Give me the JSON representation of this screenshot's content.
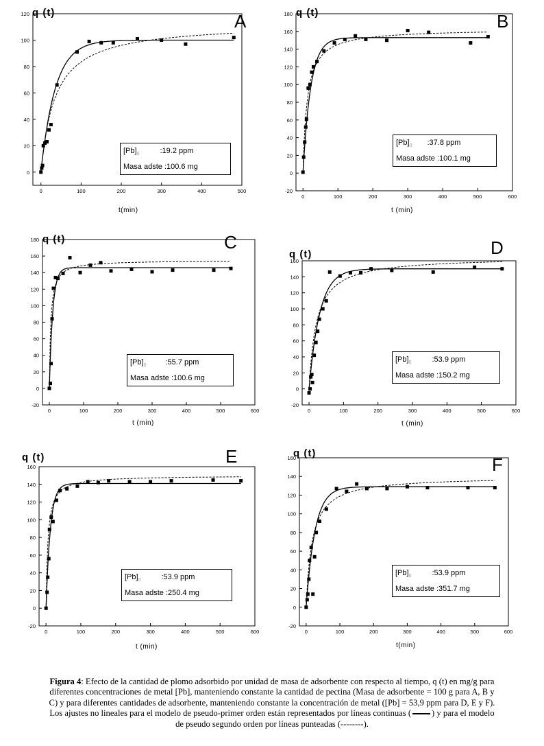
{
  "chart_data": [
    {
      "id": "A",
      "type": "scatter",
      "panel_letter": "A",
      "ylabel": "q (t)",
      "xlabel": "t(min)",
      "xlim": [
        -20,
        500
      ],
      "ylim": [
        -10,
        120
      ],
      "xticks": [
        0,
        100,
        200,
        300,
        400,
        500
      ],
      "yticks": [
        0,
        20,
        40,
        60,
        80,
        100,
        120
      ],
      "info": {
        "pb_label": "[Pb]",
        "pb_sub": "0",
        "pb_value": ":19.2 ppm",
        "masa_label": "Masa adste",
        "masa_value": ":100.6 mg"
      },
      "points": [
        [
          0,
          0
        ],
        [
          2,
          3
        ],
        [
          4,
          5
        ],
        [
          6,
          20
        ],
        [
          10,
          22
        ],
        [
          15,
          23
        ],
        [
          20,
          32
        ],
        [
          25,
          36
        ],
        [
          40,
          66
        ],
        [
          90,
          91
        ],
        [
          120,
          99
        ],
        [
          150,
          98
        ],
        [
          180,
          98
        ],
        [
          240,
          101
        ],
        [
          300,
          100
        ],
        [
          360,
          97
        ],
        [
          480,
          102
        ]
      ],
      "pfo": {
        "qe": 100,
        "k1": 0.028
      },
      "pso": {
        "qe": 113,
        "k2": 0.00025
      }
    },
    {
      "id": "B",
      "type": "scatter",
      "panel_letter": "B",
      "ylabel": "q (t)",
      "xlabel": "t (min)",
      "xlim": [
        -20,
        600
      ],
      "ylim": [
        -20,
        180
      ],
      "xticks": [
        0,
        100,
        200,
        300,
        400,
        500,
        600
      ],
      "yticks": [
        -20,
        0,
        20,
        40,
        60,
        80,
        100,
        120,
        140,
        160,
        180
      ],
      "info": {
        "pb_label": "[Pb]",
        "pb_sub": "0",
        "pb_value": ":37.8 ppm",
        "masa_label": "Masa adste",
        "masa_value": ":100.1 mg"
      },
      "points": [
        [
          0,
          1
        ],
        [
          2,
          18
        ],
        [
          5,
          35
        ],
        [
          8,
          52
        ],
        [
          10,
          61
        ],
        [
          15,
          96
        ],
        [
          20,
          100
        ],
        [
          25,
          114
        ],
        [
          30,
          120
        ],
        [
          40,
          126
        ],
        [
          60,
          138
        ],
        [
          90,
          147
        ],
        [
          120,
          151
        ],
        [
          150,
          155
        ],
        [
          180,
          151
        ],
        [
          240,
          150
        ],
        [
          300,
          161
        ],
        [
          360,
          159
        ],
        [
          480,
          147
        ],
        [
          530,
          154
        ]
      ],
      "pfo": {
        "qe": 153,
        "k1": 0.045
      },
      "pso": {
        "qe": 163,
        "k2": 0.0005
      }
    },
    {
      "id": "C",
      "type": "scatter",
      "panel_letter": "C",
      "ylabel": "q (t)",
      "xlabel": "t (min)",
      "xlim": [
        -20,
        600
      ],
      "ylim": [
        -20,
        180
      ],
      "xticks": [
        0,
        100,
        200,
        300,
        400,
        500,
        600
      ],
      "yticks": [
        -20,
        0,
        20,
        40,
        60,
        80,
        100,
        120,
        140,
        160,
        180
      ],
      "info": {
        "pb_label": "[Pb]",
        "pb_sub": "0",
        "pb_value": ":55.7 ppm",
        "masa_label": "Masa adste",
        "masa_value": ":100.6 mg"
      },
      "points": [
        [
          0,
          0
        ],
        [
          3,
          6
        ],
        [
          5,
          30
        ],
        [
          8,
          84
        ],
        [
          12,
          121
        ],
        [
          18,
          134
        ],
        [
          25,
          133
        ],
        [
          40,
          139
        ],
        [
          60,
          158
        ],
        [
          90,
          140
        ],
        [
          120,
          149
        ],
        [
          150,
          152
        ],
        [
          180,
          142
        ],
        [
          240,
          144
        ],
        [
          300,
          141
        ],
        [
          360,
          143
        ],
        [
          480,
          143
        ],
        [
          530,
          145
        ]
      ],
      "pfo": {
        "qe": 146,
        "k1": 0.1
      },
      "pso": {
        "qe": 155,
        "k2": 0.0015
      }
    },
    {
      "id": "D",
      "type": "scatter",
      "panel_letter": "D",
      "ylabel": "q (t)",
      "xlabel": "t (min)",
      "xlim": [
        -20,
        600
      ],
      "ylim": [
        -20,
        160
      ],
      "xticks": [
        0,
        100,
        200,
        300,
        400,
        500,
        600
      ],
      "yticks": [
        -20,
        0,
        20,
        40,
        60,
        80,
        100,
        120,
        140,
        160
      ],
      "info": {
        "pb_label": "[Pb]",
        "pb_sub": "0",
        "pb_value": ":53.9 ppm",
        "masa_label": "Masa adste",
        "masa_value": ":150.2 mg"
      },
      "points": [
        [
          0,
          -5
        ],
        [
          3,
          0
        ],
        [
          5,
          15
        ],
        [
          8,
          18
        ],
        [
          10,
          8
        ],
        [
          15,
          42
        ],
        [
          20,
          58
        ],
        [
          25,
          72
        ],
        [
          30,
          87
        ],
        [
          40,
          100
        ],
        [
          50,
          110
        ],
        [
          60,
          146
        ],
        [
          90,
          141
        ],
        [
          120,
          145
        ],
        [
          150,
          145
        ],
        [
          180,
          150
        ],
        [
          240,
          148
        ],
        [
          360,
          146
        ],
        [
          480,
          152
        ],
        [
          560,
          150
        ]
      ],
      "pfo": {
        "qe": 150,
        "k1": 0.032
      },
      "pso": {
        "qe": 165,
        "k2": 0.00028
      }
    },
    {
      "id": "E",
      "type": "scatter",
      "panel_letter": "E",
      "ylabel": "q (t)",
      "xlabel": "t  (min)",
      "xlim": [
        -20,
        600
      ],
      "ylim": [
        -20,
        160
      ],
      "xticks": [
        0,
        100,
        200,
        300,
        400,
        500,
        600
      ],
      "yticks": [
        -20,
        0,
        20,
        40,
        60,
        80,
        100,
        120,
        140,
        160
      ],
      "info": {
        "pb_label": "[Pb]",
        "pb_sub": "0",
        "pb_value": ":53.9 ppm",
        "masa_label": "Masa adste",
        "masa_value": ":250.4 mg"
      },
      "points": [
        [
          0,
          0
        ],
        [
          3,
          18
        ],
        [
          5,
          35
        ],
        [
          8,
          56
        ],
        [
          10,
          89
        ],
        [
          15,
          103
        ],
        [
          20,
          98
        ],
        [
          30,
          122
        ],
        [
          40,
          133
        ],
        [
          60,
          135
        ],
        [
          90,
          138
        ],
        [
          120,
          143
        ],
        [
          150,
          142
        ],
        [
          180,
          144
        ],
        [
          240,
          143
        ],
        [
          300,
          143
        ],
        [
          360,
          144
        ],
        [
          480,
          145
        ],
        [
          560,
          144
        ]
      ],
      "pfo": {
        "qe": 141,
        "k1": 0.08
      },
      "pso": {
        "qe": 150,
        "k2": 0.0012
      }
    },
    {
      "id": "F",
      "type": "scatter",
      "panel_letter": "F",
      "ylabel": "q (t)",
      "xlabel": "t(min)",
      "xlim": [
        -20,
        600
      ],
      "ylim": [
        -20,
        160
      ],
      "xticks": [
        0,
        100,
        200,
        300,
        400,
        500,
        600
      ],
      "yticks": [
        -20,
        0,
        20,
        40,
        60,
        80,
        100,
        120,
        140,
        160
      ],
      "info": {
        "pb_label": "[Pb]",
        "pb_sub": "0",
        "pb_value": ":53.9 ppm",
        "masa_label": "Masa adste",
        "masa_value": ":351.7 mg"
      },
      "points": [
        [
          0,
          0
        ],
        [
          3,
          8
        ],
        [
          5,
          14
        ],
        [
          8,
          30
        ],
        [
          10,
          50
        ],
        [
          15,
          64
        ],
        [
          20,
          14
        ],
        [
          25,
          54
        ],
        [
          30,
          80
        ],
        [
          40,
          92
        ],
        [
          60,
          105
        ],
        [
          90,
          127
        ],
        [
          120,
          124
        ],
        [
          150,
          132
        ],
        [
          180,
          127
        ],
        [
          240,
          127
        ],
        [
          300,
          129
        ],
        [
          360,
          128
        ],
        [
          480,
          128
        ],
        [
          560,
          128
        ]
      ],
      "pfo": {
        "qe": 129,
        "k1": 0.038
      },
      "pso": {
        "qe": 140,
        "k2": 0.0004
      }
    }
  ],
  "caption": {
    "fig_label": "Figura 4",
    "text": ": Efecto de la cantidad de plomo adsorbido por unidad de masa de adsorbente con respecto al tiempo, q (t) en mg/g para diferentes concentraciones de metal [Pb], manteniendo constante la cantidad de pectina (Masa de adsorbente = 100 g para A, B y C) y para diferentes cantidades de adsorbente, manteniendo constante la concentración de metal ([Pb] = 53,9 ppm para D, E y F). Los ajustes no lineales para el modelo de pseudo-primer orden están representados por líneas continuas (",
    "text_mid": ") y para el modelo de pseudo segundo orden por líneas punteadas (--------)."
  }
}
